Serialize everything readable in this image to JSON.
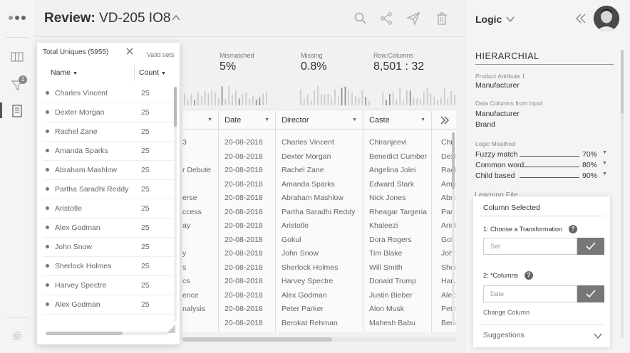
{
  "header": {
    "title_prefix": "Review:",
    "record_id": "VD-205 IO8",
    "icons": [
      "search-icon",
      "share-icon",
      "send-icon",
      "trash-icon"
    ]
  },
  "rail": {
    "notification_count": "1",
    "icons": [
      "logo-dots-icon",
      "columns-icon",
      "filter-icon",
      "document-icon",
      "settings-icon"
    ]
  },
  "stats": [
    {
      "label": "Valid sets",
      "value": ""
    },
    {
      "label": "Mismatched",
      "value": "5%"
    },
    {
      "label": "Missing",
      "value": "0.8%"
    },
    {
      "label": "Row:Columns",
      "value": "8,501 : 32"
    }
  ],
  "uniques": {
    "title": "Total Uniques (5955)",
    "col_name": "Name",
    "col_count": "Count",
    "rows": [
      {
        "name": "Charles Vincent",
        "count": "25"
      },
      {
        "name": "Dexter Morgan",
        "count": "25"
      },
      {
        "name": "Rachel Zane",
        "count": "25"
      },
      {
        "name": "Amanda Sparks",
        "count": "25"
      },
      {
        "name": "Abraham Mashlow",
        "count": "25"
      },
      {
        "name": "Partha Saradhi Reddy",
        "count": "25"
      },
      {
        "name": "Aristotle",
        "count": "25"
      },
      {
        "name": "Alex Godman",
        "count": "25"
      },
      {
        "name": "John Snow",
        "count": "25"
      },
      {
        "name": "Sherlock Holmes",
        "count": "25"
      },
      {
        "name": "Harvey Spectre",
        "count": "25"
      },
      {
        "name": "Alex Godman",
        "count": "25"
      }
    ]
  },
  "grid": {
    "columns": [
      "",
      "Date",
      "Director",
      "Caste",
      ""
    ],
    "first_col": [
      "3",
      "",
      "r Debute",
      "",
      "erse",
      "ccess",
      "ay",
      "",
      "y",
      "s",
      "cs",
      "ence",
      "nalysis",
      ""
    ],
    "dates": [
      "20-08-2018",
      "20-08-2018",
      "20-08-2018",
      "20-08-2018",
      "20-08-2018",
      "20-08-2018",
      "20-08-2018",
      "20-08-2018",
      "20-08-2018",
      "20-08-2018",
      "20-08-2018",
      "20-08-2018",
      "20-08-2018",
      "20-08-2018"
    ],
    "directors": [
      "Charles Vincent",
      "Dexter Morgan",
      "Rachel Zane",
      "Amanda Sparks",
      "Abraham Mashlow",
      "Partha Saradhi Reddy",
      "Aristotle",
      "Gokul",
      "John Snow",
      "Sherlock Holmes",
      "Harvey Spectre",
      "Alex Godman",
      "Peter Parker",
      "Berokat Rehman"
    ],
    "castes": [
      "Chiranjeevi",
      "Benedict Cumber",
      "Angelina Jolei",
      "Edward Stark",
      "Nick Jones",
      "Rheagar Targeria",
      "Khaleezi",
      "Dora Rogers",
      "Tim Blake",
      "Will Smith",
      "Donald Trump",
      "Justin Bieber",
      "Alon Musk",
      "Mahesh Babu"
    ],
    "last_col": [
      "Chri",
      "Dext",
      "Rach",
      "Ama",
      "Abra",
      "Part",
      "Arist",
      "Goku",
      "John",
      "Sherl",
      "Harv",
      "Alex",
      "Pete",
      "Berk"
    ]
  },
  "panel": {
    "heading": "Logic",
    "section_title": "HIERARCHIAL",
    "product_attr_label": "Product Attribute 1",
    "product_attr_value": "Manufacturer",
    "data_cols_label": "Data Columns from Input",
    "data_cols": [
      "Manufacturer",
      "Brand"
    ],
    "logic_method_label": "Logic Meathod",
    "methods": [
      {
        "name": "Fuzzy match",
        "pct": "70%"
      },
      {
        "name": "Common word",
        "pct": "80%"
      },
      {
        "name": "Child based",
        "pct": "90%"
      }
    ],
    "learning_file": "Learning File"
  },
  "card": {
    "title": "Column Selected",
    "step1_label": "1: Choose a Transformation",
    "step1_placeholder": "Set",
    "step2_label": "2: *Columns",
    "step2_placeholder": "Date",
    "change_column": "Change Column",
    "suggestions": "Suggestions"
  }
}
